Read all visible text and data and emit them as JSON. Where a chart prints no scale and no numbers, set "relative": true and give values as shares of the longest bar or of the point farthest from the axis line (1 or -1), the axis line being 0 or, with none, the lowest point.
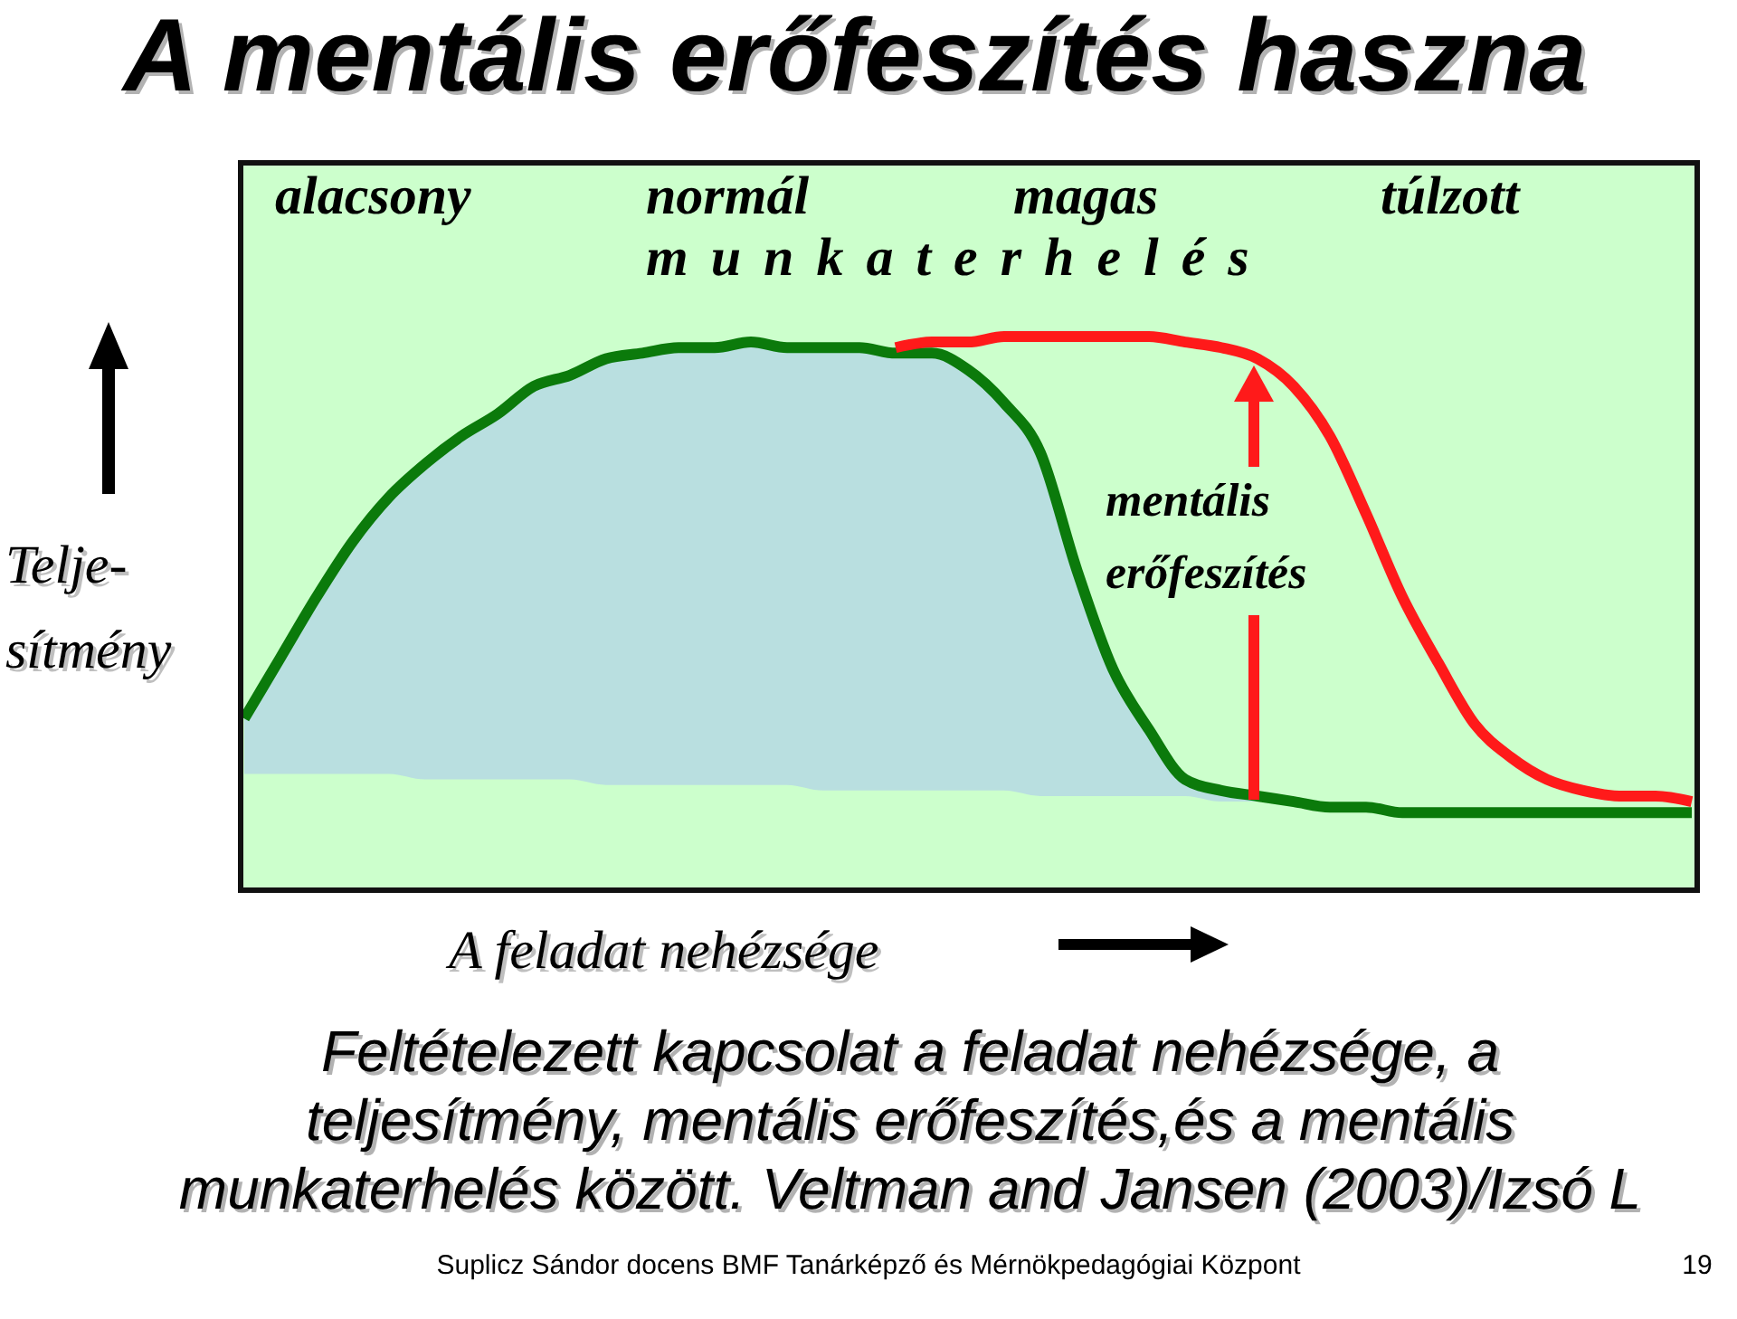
{
  "chart_data": {
    "type": "line",
    "relative": true,
    "title": "A mentális erőfeszítés haszna",
    "xlabel": "A feladat nehézsége",
    "ylabel": "Telje-\nsítmény",
    "categories": [
      null,
      null,
      null,
      null,
      null,
      null,
      null,
      null,
      null,
      null,
      null,
      null,
      null,
      null,
      null,
      null,
      null,
      null,
      null,
      null,
      null,
      null,
      null,
      null,
      null,
      null,
      null,
      null,
      null,
      null,
      null,
      null,
      null,
      null,
      null,
      null,
      null,
      null,
      null,
      null,
      null
    ],
    "series": [
      {
        "color": "#0b7a0b",
        "values": [
          0.31,
          0.42,
          0.53,
          0.63,
          0.71,
          0.77,
          0.82,
          0.86,
          0.91,
          0.93,
          0.96,
          0.97,
          0.98,
          0.98,
          0.99,
          0.98,
          0.98,
          0.98,
          0.97,
          0.97,
          0.94,
          0.88,
          0.79,
          0.58,
          0.4,
          0.29,
          0.2,
          0.18,
          0.17,
          0.16,
          0.15,
          0.15,
          0.14,
          0.14,
          0.14,
          0.14,
          0.14,
          0.14,
          0.14,
          0.14,
          0.14
        ],
        "upper": [
          0.31,
          0.42,
          0.53,
          0.63,
          0.71,
          0.77,
          0.82,
          0.86,
          0.91,
          0.93,
          0.96,
          0.97,
          0.98,
          0.98,
          0.99,
          0.98,
          0.98,
          0.98,
          0.97,
          0.97,
          0.94,
          0.88,
          0.79,
          0.58,
          0.4,
          0.29,
          0.2,
          0.18,
          0.17,
          null,
          null,
          null,
          null,
          null,
          null,
          null,
          null,
          null,
          null,
          null,
          null
        ],
        "lower": [
          0.21,
          0.21,
          0.21,
          0.21,
          0.21,
          0.2,
          0.2,
          0.2,
          0.2,
          0.2,
          0.19,
          0.19,
          0.19,
          0.19,
          0.19,
          0.19,
          0.18,
          0.18,
          0.18,
          0.18,
          0.18,
          0.18,
          0.17,
          0.17,
          0.17,
          0.17,
          0.17,
          0.16,
          0.16,
          null,
          null,
          null,
          null,
          null,
          null,
          null,
          null,
          null,
          null,
          null,
          null
        ]
      },
      {
        "color": "#ff1a1a",
        "values": [
          null,
          null,
          null,
          null,
          null,
          null,
          null,
          null,
          null,
          null,
          null,
          null,
          null,
          null,
          null,
          null,
          null,
          null,
          0.98,
          0.99,
          0.99,
          1.0,
          1.0,
          1.0,
          1.0,
          1.0,
          0.99,
          0.98,
          0.96,
          0.91,
          0.82,
          0.68,
          0.53,
          0.41,
          0.3,
          0.24,
          0.2,
          0.18,
          0.17,
          0.17,
          0.16
        ]
      }
    ],
    "annotations": [
      "alacsony",
      "normál",
      "magas",
      "túlzott",
      "munkaterhelés",
      "mentális\nerőfeszítés",
      "Feltételezett kapcsolat a feladat nehézsége, a\nteljesítmény, mentális erőfeszítés,és a mentális\nmunkaterhelés között. Veltman and Jansen (2003)/Izsó L",
      "Suplicz Sándor docens BMF Tanárképző és Mérnökpedagógiai Központ",
      "19"
    ]
  }
}
